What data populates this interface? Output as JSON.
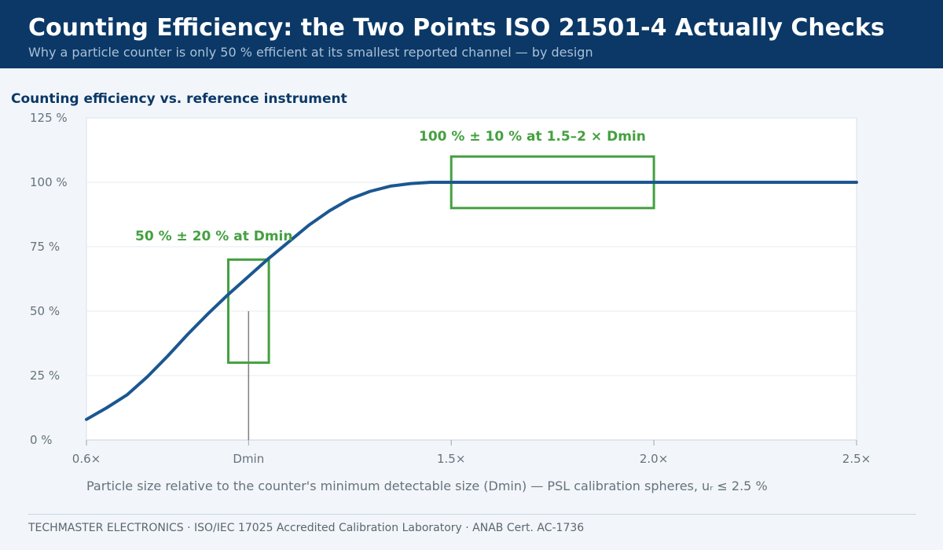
{
  "header": {
    "title": "Counting Efficiency: the Two Points ISO 21501-4 Actually Checks",
    "subtitle": "Why a particle counter is only 50 % efficient at its smallest reported channel — by design"
  },
  "section_title": "Counting efficiency vs. reference instrument",
  "chart_data": {
    "type": "line",
    "title": "Counting efficiency vs. reference instrument",
    "xlabel": "Particle size relative to the counter's minimum detectable size (Dmin) — PSL calibration spheres, uᵣ ≤ 2.5 %",
    "ylabel": "",
    "xlim": [
      0.6,
      2.5
    ],
    "ylim": [
      0,
      125
    ],
    "grid": true,
    "x_ticks": [
      {
        "value": 0.6,
        "label": "0.6×"
      },
      {
        "value": 1.0,
        "label": "Dmin"
      },
      {
        "value": 1.5,
        "label": "1.5×"
      },
      {
        "value": 2.0,
        "label": "2.0×"
      },
      {
        "value": 2.5,
        "label": "2.5×"
      }
    ],
    "y_ticks": [
      {
        "value": 0,
        "label": "0 %"
      },
      {
        "value": 25,
        "label": "25 %"
      },
      {
        "value": 50,
        "label": "50 %"
      },
      {
        "value": 75,
        "label": "75 %"
      },
      {
        "value": 100,
        "label": "100 %"
      },
      {
        "value": 125,
        "label": "125 %"
      }
    ],
    "series": [
      {
        "color": "#1b5791",
        "x": [
          0.6,
          0.65,
          0.7,
          0.75,
          0.8,
          0.85,
          0.9,
          0.95,
          1.0,
          1.05,
          1.1,
          1.15,
          1.2,
          1.25,
          1.3,
          1.35,
          1.4,
          1.45,
          1.5,
          2.0,
          2.5
        ],
        "y": [
          8,
          12.5,
          17.5,
          24.5,
          32.5,
          41,
          49,
          56.5,
          63.5,
          70.5,
          77,
          83.5,
          89,
          93.5,
          96.5,
          98.5,
          99.5,
          100,
          100,
          100,
          100
        ]
      }
    ],
    "marker": {
      "x": 1.0,
      "y": 50
    },
    "annotations": [
      {
        "label": "50 % ± 20 %  at Dmin",
        "x_range": [
          0.95,
          1.05
        ],
        "y_range": [
          30,
          70
        ],
        "color": "#44a040"
      },
      {
        "label": "100 % ± 10 %  at 1.5–2 × Dmin",
        "x_range": [
          1.5,
          2.0
        ],
        "y_range": [
          90,
          110
        ],
        "color": "#44a040"
      }
    ]
  },
  "footer": {
    "text": "TECHMASTER ELECTRONICS  ·  ISO/IEC 17025 Accredited Calibration Laboratory  ·  ANAB Cert. AC-1736"
  }
}
